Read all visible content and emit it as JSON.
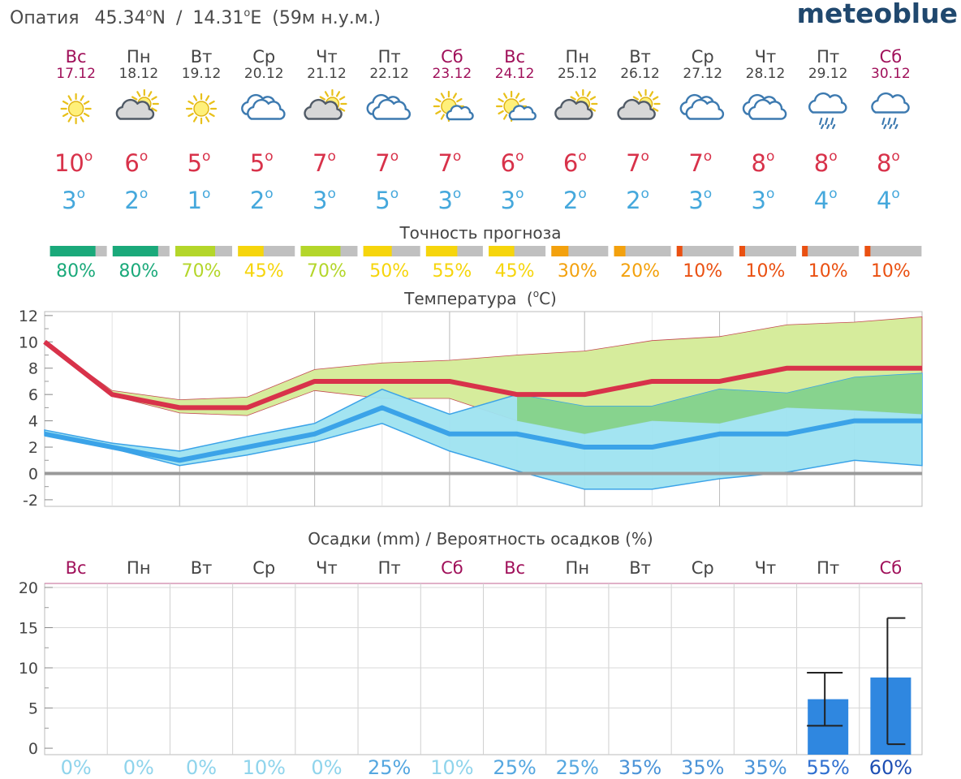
{
  "header": {
    "location_name": "Опатия",
    "lat": "45.34",
    "lat_hem": "N",
    "lon": "14.31",
    "lon_hem": "E",
    "elevation": "(59м н.у.м.)",
    "separator": "/",
    "brand": "meteoblue",
    "degree_mark": "o"
  },
  "days": [
    {
      "dow": "Вс",
      "date": "17.12",
      "weekend": true,
      "icon": "sun-icon",
      "tmax": "10",
      "tmin": "3",
      "accuracy": 80,
      "accuracy_label": "80%",
      "precip_prob": "0%"
    },
    {
      "dow": "Пн",
      "date": "18.12",
      "weekend": false,
      "icon": "sun-cloud-icon",
      "tmax": "6",
      "tmin": "2",
      "accuracy": 80,
      "accuracy_label": "80%",
      "precip_prob": "0%"
    },
    {
      "dow": "Вт",
      "date": "19.12",
      "weekend": false,
      "icon": "sun-icon",
      "tmax": "5",
      "tmin": "1",
      "accuracy": 70,
      "accuracy_label": "70%",
      "precip_prob": "0%"
    },
    {
      "dow": "Ср",
      "date": "20.12",
      "weekend": false,
      "icon": "cloud-icon",
      "tmax": "5",
      "tmin": "2",
      "accuracy": 45,
      "accuracy_label": "45%",
      "precip_prob": "10%"
    },
    {
      "dow": "Чт",
      "date": "21.12",
      "weekend": false,
      "icon": "sun-cloud-icon",
      "tmax": "7",
      "tmin": "3",
      "accuracy": 70,
      "accuracy_label": "70%",
      "precip_prob": "0%"
    },
    {
      "dow": "Пт",
      "date": "22.12",
      "weekend": false,
      "icon": "cloud-icon",
      "tmax": "7",
      "tmin": "5",
      "accuracy": 50,
      "accuracy_label": "50%",
      "precip_prob": "25%"
    },
    {
      "dow": "Сб",
      "date": "23.12",
      "weekend": true,
      "icon": "sun-small-cloud-icon",
      "tmax": "7",
      "tmin": "3",
      "accuracy": 55,
      "accuracy_label": "55%",
      "precip_prob": "10%"
    },
    {
      "dow": "Вс",
      "date": "24.12",
      "weekend": true,
      "icon": "sun-small-cloud-icon",
      "tmax": "6",
      "tmin": "3",
      "accuracy": 45,
      "accuracy_label": "45%",
      "precip_prob": "25%"
    },
    {
      "dow": "Пн",
      "date": "25.12",
      "weekend": false,
      "icon": "sun-cloud-icon",
      "tmax": "6",
      "tmin": "2",
      "accuracy": 30,
      "accuracy_label": "30%",
      "precip_prob": "25%"
    },
    {
      "dow": "Вт",
      "date": "26.12",
      "weekend": false,
      "icon": "sun-cloud-icon",
      "tmax": "7",
      "tmin": "2",
      "accuracy": 20,
      "accuracy_label": "20%",
      "precip_prob": "35%"
    },
    {
      "dow": "Ср",
      "date": "27.12",
      "weekend": false,
      "icon": "cloud-icon",
      "tmax": "7",
      "tmin": "3",
      "accuracy": 10,
      "accuracy_label": "10%",
      "precip_prob": "35%"
    },
    {
      "dow": "Чт",
      "date": "28.12",
      "weekend": false,
      "icon": "cloud-icon",
      "tmax": "8",
      "tmin": "3",
      "accuracy": 10,
      "accuracy_label": "10%",
      "precip_prob": "35%"
    },
    {
      "dow": "Пт",
      "date": "29.12",
      "weekend": false,
      "icon": "cloud-rain-icon",
      "tmax": "8",
      "tmin": "4",
      "accuracy": 10,
      "accuracy_label": "10%",
      "precip_prob": "55%"
    },
    {
      "dow": "Сб",
      "date": "30.12",
      "weekend": true,
      "icon": "cloud-rain-icon",
      "tmax": "8",
      "tmin": "4",
      "accuracy": 10,
      "accuracy_label": "10%",
      "precip_prob": "60%"
    }
  ],
  "accuracy_title": "Точность прогноза",
  "colors": {
    "weekend": "#a0105a",
    "weekday": "#444444",
    "tmax_text": "#d8324a",
    "tmin_text": "#45a8dc",
    "max_line": "#d8324a",
    "min_line": "#3ba3e8",
    "max_band": "#d6ec9c",
    "min_band": "#9ee3f0",
    "overlap_band": "#87d38e",
    "zero_line": "#999999",
    "grid": "#cccccc",
    "brand": "#20486e",
    "precip_bar": "#2f87e0",
    "acc_80": "#1aa97a",
    "acc_70": "#b4d62a",
    "acc_50": "#f6d50c",
    "acc_30": "#f3a10d",
    "acc_10": "#ea5011",
    "acc_rest": "#c0c0c0"
  },
  "chart_data": [
    {
      "type": "line",
      "title": "Температура",
      "unit_label": "(",
      "unit_degree": "o",
      "unit_letter": "C)",
      "x": [
        "17.12",
        "18.12",
        "19.12",
        "20.12",
        "21.12",
        "22.12",
        "23.12",
        "24.12",
        "25.12",
        "26.12",
        "27.12",
        "28.12",
        "29.12",
        "30.12"
      ],
      "ylim": [
        -2.5,
        12.3
      ],
      "yticks": [
        -2,
        0,
        2,
        4,
        6,
        8,
        10,
        12
      ],
      "grid": true,
      "series": [
        {
          "values": [
            10,
            6,
            5,
            5,
            7,
            7,
            7,
            6,
            6,
            7,
            7,
            8,
            8,
            8
          ]
        },
        {
          "values": [
            3,
            2,
            1,
            2,
            3,
            5,
            3,
            3,
            2,
            2,
            3,
            3,
            4,
            4
          ]
        },
        {
          "values": [
            10,
            6.3,
            5.6,
            5.8,
            7.9,
            8.4,
            8.6,
            9.0,
            9.3,
            10.1,
            10.4,
            11.3,
            11.5,
            11.9
          ]
        },
        {
          "values": [
            10,
            5.9,
            4.6,
            4.4,
            6.3,
            5.7,
            5.7,
            4.0,
            3.0,
            4.0,
            3.8,
            5.0,
            4.8,
            4.5
          ]
        },
        {
          "values": [
            3.3,
            2.3,
            1.7,
            2.8,
            3.8,
            6.4,
            4.5,
            6.0,
            5.1,
            5.1,
            6.4,
            6.1,
            7.3,
            7.6
          ]
        },
        {
          "values": [
            2.9,
            1.9,
            0.6,
            1.4,
            2.4,
            3.8,
            1.7,
            0.2,
            -1.2,
            -1.2,
            -0.4,
            0.1,
            1.0,
            0.6
          ]
        }
      ]
    },
    {
      "type": "bar",
      "title": "Осадки (mm) / Вероятность осадков (%)",
      "categories": [
        "Вс",
        "Пн",
        "Вт",
        "Ср",
        "Чт",
        "Пт",
        "Сб",
        "Вс",
        "Пн",
        "Вт",
        "Ср",
        "Чт",
        "Пт",
        "Сб"
      ],
      "values": [
        0,
        0,
        0,
        0,
        0,
        0,
        0,
        0,
        0,
        0,
        0,
        0,
        6.1,
        8.8
      ],
      "error_low": [
        0,
        0,
        0,
        0,
        0,
        0,
        0,
        0,
        0,
        0,
        0,
        0,
        2.8,
        0.5
      ],
      "error_high": [
        0,
        0,
        0,
        0,
        0,
        0,
        0,
        0,
        0,
        0,
        0,
        0,
        9.4,
        16.2
      ],
      "ylim": [
        -0.8,
        20.5
      ],
      "yticks": [
        0,
        5,
        10,
        15,
        20
      ],
      "grid": true
    }
  ]
}
